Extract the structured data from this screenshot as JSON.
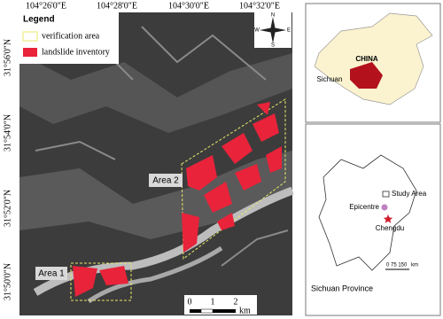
{
  "map": {
    "top_labels": [
      "104°26'0\"E",
      "104°28'0\"E",
      "104°30'0\"E",
      "104°32'0\"E"
    ],
    "left_labels": [
      "31°56'0\"N",
      "31°54'0\"N",
      "31°52'0\"N",
      "31°50'0\"N"
    ],
    "legend": {
      "title": "Legend",
      "items": [
        "verification area",
        "landslide inventory"
      ]
    },
    "areas": [
      "Area 1",
      "Area 2"
    ],
    "scale_bar": {
      "ticks": [
        "0",
        "1",
        "2"
      ],
      "unit": "km"
    },
    "compass": [
      "N",
      "E",
      "S",
      "W"
    ]
  },
  "inset_china": {
    "country": "CHINA",
    "province": "Sichuan"
  },
  "inset_sichuan": {
    "labels": [
      "Study Area",
      "Epicentre",
      "Chengdu"
    ],
    "scale_ticks": "0  75 150",
    "scale_unit": "km",
    "caption": "Sichuan Province"
  }
}
